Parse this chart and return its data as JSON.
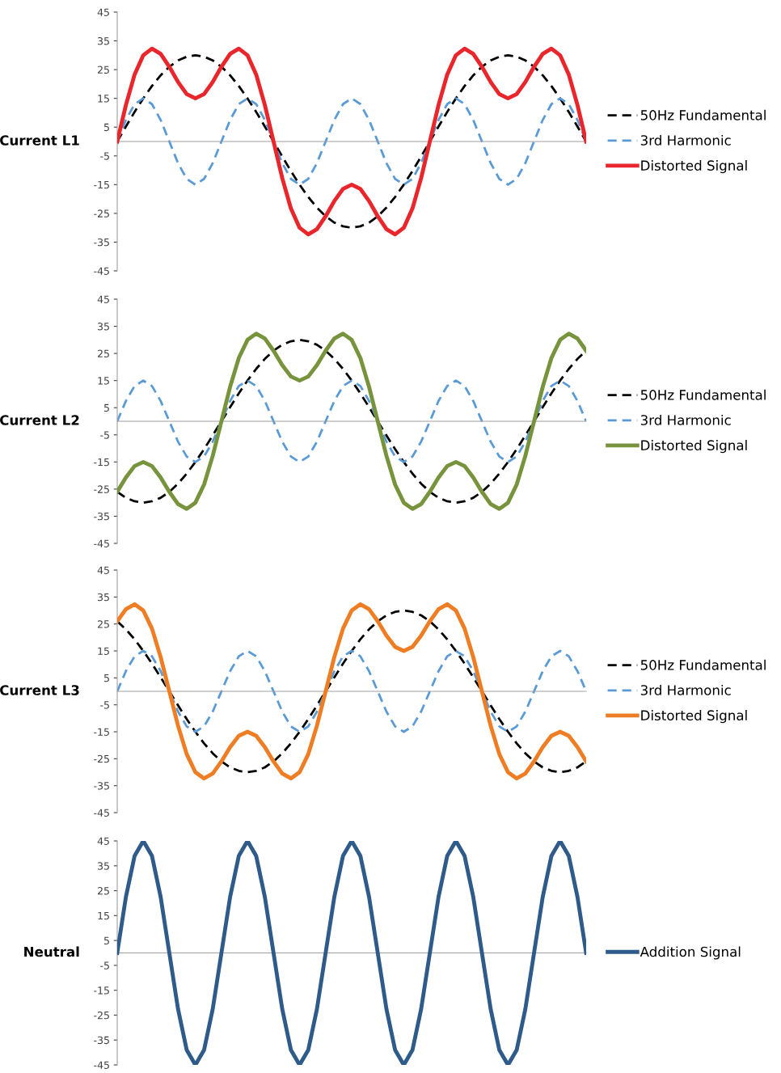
{
  "chart_data": [
    {
      "type": "line",
      "ylabel": "Current L1",
      "ylim": [
        -45,
        45
      ],
      "yticks": [
        -45,
        -35,
        -25,
        -15,
        -5,
        5,
        15,
        25,
        35,
        45
      ],
      "legend": "right",
      "tick_labels": "y",
      "categories": [
        null,
        null,
        null,
        null,
        null,
        null,
        null,
        null,
        null,
        null,
        null,
        null,
        null,
        null,
        null,
        null,
        null,
        null,
        null,
        null,
        null,
        null,
        null,
        null,
        null,
        null,
        null,
        null,
        null,
        null,
        null,
        null,
        null,
        null,
        null,
        null,
        null,
        null,
        null,
        null,
        null,
        null,
        null,
        null,
        null,
        null,
        null,
        null,
        null,
        null,
        null,
        null,
        null,
        null,
        null
      ],
      "series": [
        {
          "name": "50Hz Fundamental",
          "color": "#000000",
          "line_style": "dashed",
          "values": [
            0,
            5.2,
            10.3,
            15,
            19.3,
            23,
            26,
            28.2,
            29.5,
            30,
            29.5,
            28.2,
            26,
            23,
            19.3,
            15,
            10.3,
            5.2,
            0,
            -5.2,
            -10.3,
            -15,
            -19.3,
            -23,
            -26,
            -28.2,
            -29.5,
            -30,
            -29.5,
            -28.2,
            -26,
            -23,
            -19.3,
            -15,
            -10.3,
            -5.2,
            0,
            5.2,
            10.3,
            15,
            19.3,
            23,
            26,
            28.2,
            29.5,
            30,
            29.5,
            28.2,
            26,
            23,
            19.3,
            15,
            10.3,
            5.2,
            0
          ]
        },
        {
          "name": "3rd Harmonic",
          "color": "#5b9bd5",
          "line_style": "dashed",
          "values": [
            0,
            7.5,
            13,
            15,
            13,
            7.5,
            0,
            -7.5,
            -13,
            -15,
            -13,
            -7.5,
            0,
            7.5,
            13,
            15,
            13,
            7.5,
            0,
            -7.5,
            -13,
            -15,
            -13,
            -7.5,
            0,
            7.5,
            13,
            15,
            13,
            7.5,
            0,
            -7.5,
            -13,
            -15,
            -13,
            -7.5,
            0,
            7.5,
            13,
            15,
            13,
            7.5,
            0,
            -7.5,
            -13,
            -15,
            -13,
            -7.5,
            0,
            7.5,
            13,
            15,
            13,
            7.5,
            0
          ]
        },
        {
          "name": "Distorted Signal",
          "color": "#e8262b",
          "line_style": "solid",
          "values": [
            0,
            12.7,
            23.3,
            30,
            32.3,
            30.5,
            26,
            20.7,
            16.5,
            15,
            16.5,
            20.7,
            26,
            30.5,
            32.3,
            30,
            23.3,
            12.7,
            0,
            -12.7,
            -23.3,
            -30,
            -32.3,
            -30.5,
            -26,
            -20.7,
            -16.5,
            -15,
            -16.5,
            -20.7,
            -26,
            -30.5,
            -32.3,
            -30,
            -23.3,
            -12.7,
            0,
            12.7,
            23.3,
            30,
            32.3,
            30.5,
            26,
            20.7,
            16.5,
            15,
            16.5,
            20.7,
            26,
            30.5,
            32.3,
            30,
            23.3,
            12.7,
            0
          ]
        }
      ]
    },
    {
      "type": "line",
      "ylabel": "Current L2",
      "ylim": [
        -45,
        45
      ],
      "yticks": [
        -45,
        -35,
        -25,
        -15,
        -5,
        5,
        15,
        25,
        35,
        45
      ],
      "legend": "right",
      "tick_labels": "y",
      "categories": [
        null,
        null,
        null,
        null,
        null,
        null,
        null,
        null,
        null,
        null,
        null,
        null,
        null,
        null,
        null,
        null,
        null,
        null,
        null,
        null,
        null,
        null,
        null,
        null,
        null,
        null,
        null,
        null,
        null,
        null,
        null,
        null,
        null,
        null,
        null,
        null,
        null,
        null,
        null,
        null,
        null,
        null,
        null,
        null,
        null,
        null,
        null,
        null,
        null,
        null,
        null,
        null,
        null,
        null,
        null
      ],
      "series": [
        {
          "name": "50Hz Fundamental",
          "color": "#000000",
          "line_style": "dashed",
          "values": [
            -26,
            -28.2,
            -29.5,
            -30,
            -29.5,
            -28.2,
            -26,
            -23,
            -19.3,
            -15,
            -10.3,
            -5.2,
            0,
            5.2,
            10.3,
            15,
            19.3,
            23,
            26,
            28.2,
            29.5,
            30,
            29.5,
            28.2,
            26,
            23,
            19.3,
            15,
            10.3,
            5.2,
            0,
            -5.2,
            -10.3,
            -15,
            -19.3,
            -23,
            -26,
            -28.2,
            -29.5,
            -30,
            -29.5,
            -28.2,
            -26,
            -23,
            -19.3,
            -15,
            -10.3,
            -5.2,
            0,
            5.2,
            10.3,
            15,
            19.3,
            23,
            26
          ]
        },
        {
          "name": "3rd Harmonic",
          "color": "#5b9bd5",
          "line_style": "dashed",
          "values": [
            0,
            7.5,
            13,
            15,
            13,
            7.5,
            0,
            -7.5,
            -13,
            -15,
            -13,
            -7.5,
            0,
            7.5,
            13,
            15,
            13,
            7.5,
            0,
            -7.5,
            -13,
            -15,
            -13,
            -7.5,
            0,
            7.5,
            13,
            15,
            13,
            7.5,
            0,
            -7.5,
            -13,
            -15,
            -13,
            -7.5,
            0,
            7.5,
            13,
            15,
            13,
            7.5,
            0,
            -7.5,
            -13,
            -15,
            -13,
            -7.5,
            0,
            7.5,
            13,
            15,
            13,
            7.5,
            0
          ]
        },
        {
          "name": "Distorted Signal",
          "color": "#77933c",
          "line_style": "solid",
          "values": [
            -26,
            -20.7,
            -16.5,
            -15,
            -16.5,
            -20.7,
            -26,
            -30.5,
            -32.3,
            -30,
            -23.3,
            -12.7,
            0,
            12.7,
            23.3,
            30,
            32.3,
            30.5,
            26,
            20.7,
            16.5,
            15,
            16.5,
            20.7,
            26,
            30.5,
            32.3,
            30,
            23.3,
            12.7,
            0,
            -12.7,
            -23.3,
            -30,
            -32.3,
            -30.5,
            -26,
            -20.7,
            -16.5,
            -15,
            -16.5,
            -20.7,
            -26,
            -30.5,
            -32.3,
            -30,
            -23.3,
            -12.7,
            0,
            12.7,
            23.3,
            30,
            32.3,
            30.5,
            26
          ]
        }
      ]
    },
    {
      "type": "line",
      "ylabel": "Current L3",
      "ylim": [
        -45,
        45
      ],
      "yticks": [
        -45,
        -35,
        -25,
        -15,
        -5,
        5,
        15,
        25,
        35,
        45
      ],
      "legend": "right",
      "tick_labels": "y",
      "categories": [
        null,
        null,
        null,
        null,
        null,
        null,
        null,
        null,
        null,
        null,
        null,
        null,
        null,
        null,
        null,
        null,
        null,
        null,
        null,
        null,
        null,
        null,
        null,
        null,
        null,
        null,
        null,
        null,
        null,
        null,
        null,
        null,
        null,
        null,
        null,
        null,
        null,
        null,
        null,
        null,
        null,
        null,
        null,
        null,
        null,
        null,
        null,
        null,
        null,
        null,
        null,
        null,
        null,
        null,
        null
      ],
      "series": [
        {
          "name": "50Hz Fundamental",
          "color": "#000000",
          "line_style": "dashed",
          "values": [
            26,
            23,
            19.3,
            15,
            10.3,
            5.2,
            0,
            -5.2,
            -10.3,
            -15,
            -19.3,
            -23,
            -26,
            -28.2,
            -29.5,
            -30,
            -29.5,
            -28.2,
            -26,
            -23,
            -19.3,
            -15,
            -10.3,
            -5.2,
            0,
            5.2,
            10.3,
            15,
            19.3,
            23,
            26,
            28.2,
            29.5,
            30,
            29.5,
            28.2,
            26,
            23,
            19.3,
            15,
            10.3,
            5.2,
            0,
            -5.2,
            -10.3,
            -15,
            -19.3,
            -23,
            -26,
            -28.2,
            -29.5,
            -30,
            -29.5,
            -28.2,
            -26
          ]
        },
        {
          "name": "3rd Harmonic",
          "color": "#5b9bd5",
          "line_style": "dashed",
          "values": [
            0,
            7.5,
            13,
            15,
            13,
            7.5,
            0,
            -7.5,
            -13,
            -15,
            -13,
            -7.5,
            0,
            7.5,
            13,
            15,
            13,
            7.5,
            0,
            -7.5,
            -13,
            -15,
            -13,
            -7.5,
            0,
            7.5,
            13,
            15,
            13,
            7.5,
            0,
            -7.5,
            -13,
            -15,
            -13,
            -7.5,
            0,
            7.5,
            13,
            15,
            13,
            7.5,
            0,
            -7.5,
            -13,
            -15,
            -13,
            -7.5,
            0,
            7.5,
            13,
            15,
            13,
            7.5,
            0
          ]
        },
        {
          "name": "Distorted Signal",
          "color": "#ee7d24",
          "line_style": "solid",
          "values": [
            26,
            30.5,
            32.3,
            30,
            23.3,
            12.7,
            0,
            -12.7,
            -23.3,
            -30,
            -32.3,
            -30.5,
            -26,
            -20.7,
            -16.5,
            -15,
            -16.5,
            -20.7,
            -26,
            -30.5,
            -32.3,
            -30,
            -23.3,
            -12.7,
            0,
            12.7,
            23.3,
            30,
            32.3,
            30.5,
            26,
            20.7,
            16.5,
            15,
            16.5,
            20.7,
            26,
            30.5,
            32.3,
            30,
            23.3,
            12.7,
            0,
            -12.7,
            -23.3,
            -30,
            -32.3,
            -30.5,
            -26,
            -20.7,
            -16.5,
            -15,
            -16.5,
            -20.7,
            -26
          ]
        }
      ]
    },
    {
      "type": "line",
      "ylabel": "Neutral",
      "ylim": [
        -45,
        45
      ],
      "yticks": [
        -45,
        -35,
        -25,
        -15,
        -5,
        5,
        15,
        25,
        35,
        45
      ],
      "legend": "right",
      "tick_labels": "y",
      "categories": [
        null,
        null,
        null,
        null,
        null,
        null,
        null,
        null,
        null,
        null,
        null,
        null,
        null,
        null,
        null,
        null,
        null,
        null,
        null,
        null,
        null,
        null,
        null,
        null,
        null,
        null,
        null,
        null,
        null,
        null,
        null,
        null,
        null,
        null,
        null,
        null,
        null,
        null,
        null,
        null,
        null,
        null,
        null,
        null,
        null,
        null,
        null,
        null,
        null,
        null,
        null,
        null,
        null,
        null,
        null
      ],
      "series": [
        {
          "name": "Addition Signal",
          "color": "#2f5b8a",
          "line_style": "solid",
          "values": [
            0,
            22.5,
            39,
            45,
            39,
            22.5,
            0,
            -22.5,
            -39,
            -45,
            -39,
            -22.5,
            0,
            22.5,
            39,
            45,
            39,
            22.5,
            0,
            -22.5,
            -39,
            -45,
            -39,
            -22.5,
            0,
            22.5,
            39,
            45,
            39,
            22.5,
            0,
            -22.5,
            -39,
            -45,
            -39,
            -22.5,
            0,
            22.5,
            39,
            45,
            39,
            22.5,
            0,
            -22.5,
            -39,
            -45,
            -39,
            -22.5,
            0,
            22.5,
            39,
            45,
            39,
            22.5,
            0
          ]
        }
      ]
    }
  ]
}
